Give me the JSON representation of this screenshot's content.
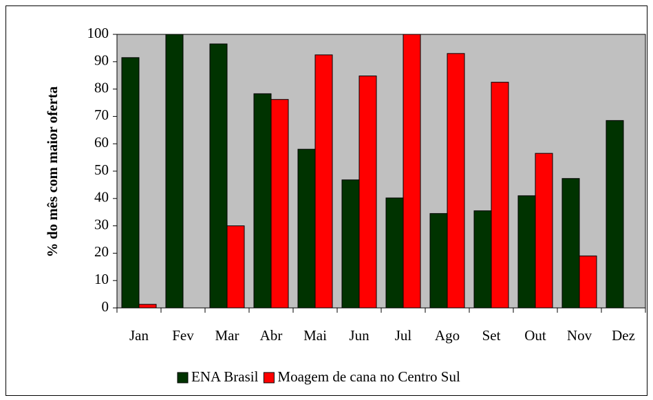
{
  "chart_data": {
    "type": "bar",
    "y_label": "% do mês com maior oferta",
    "categories": [
      "Jan",
      "Fev",
      "Mar",
      "Abr",
      "Mai",
      "Jun",
      "Jul",
      "Ago",
      "Set",
      "Out",
      "Nov",
      "Dez"
    ],
    "series": [
      {
        "name": "ENA Brasil",
        "color": "#003300",
        "values": [
          91.5,
          100,
          96.5,
          78.3,
          58,
          46.8,
          40.2,
          34.5,
          35.5,
          41,
          47.3,
          68.5
        ]
      },
      {
        "name": "Moagem de cana no Centro Sul",
        "color": "#ff0000",
        "values": [
          1.3,
          0,
          30,
          76.2,
          92.5,
          84.8,
          100,
          93,
          82.5,
          56.5,
          19,
          0
        ]
      }
    ],
    "ylim": [
      0,
      100
    ],
    "yticks": [
      0,
      10,
      20,
      30,
      40,
      50,
      60,
      70,
      80,
      90,
      100
    ],
    "legend": "bottom",
    "plot_background": "#c0c0c0"
  }
}
